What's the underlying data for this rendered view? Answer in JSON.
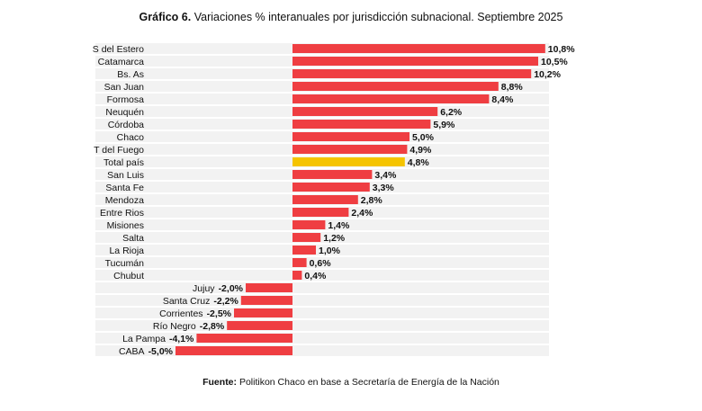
{
  "title": {
    "bold": "Gráfico 6.",
    "text": "Variaciones % interanuales por jurisdicción subnacional. Septiembre 2025"
  },
  "source": {
    "bold": "Fuente:",
    "text": "Politikon Chaco en base a Secretaría de Energía de la Nación"
  },
  "colors": {
    "bar": "#ef3e42",
    "highlight": "#f5c400",
    "stripe": "#f2f2f2",
    "text": "#111111"
  },
  "chart_data": {
    "type": "bar",
    "orientation": "horizontal",
    "categories": [
      "S del Estero",
      "Catamarca",
      "Bs. As",
      "San Juan",
      "Formosa",
      "Neuquén",
      "Córdoba",
      "Chaco",
      "T del Fuego",
      "Total país",
      "San Luis",
      "Santa Fe",
      "Mendoza",
      "Entre Rios",
      "Misiones",
      "Salta",
      "La Rioja",
      "Tucumán",
      "Chubut",
      "Jujuy",
      "Santa Cruz",
      "Corrientes",
      "Río Negro",
      "La Pampa",
      "CABA"
    ],
    "values": [
      10.8,
      10.5,
      10.2,
      8.8,
      8.4,
      6.2,
      5.9,
      5.0,
      4.9,
      4.8,
      3.4,
      3.3,
      2.8,
      2.4,
      1.4,
      1.2,
      1.0,
      0.6,
      0.4,
      -2.0,
      -2.2,
      -2.5,
      -2.8,
      -4.1,
      -5.0
    ],
    "labels": [
      "10,8%",
      "10,5%",
      "10,2%",
      "8,8%",
      "8,4%",
      "6,2%",
      "5,9%",
      "5,0%",
      "4,9%",
      "4,8%",
      "3,4%",
      "3,3%",
      "2,8%",
      "2,4%",
      "1,4%",
      "1,2%",
      "1,0%",
      "0,6%",
      "0,4%",
      "-2,0%",
      "-2,2%",
      "-2,5%",
      "-2,8%",
      "-4,1%",
      "-5,0%"
    ],
    "highlight_category": "Total país",
    "xlim": [
      -5.0,
      10.8
    ]
  }
}
